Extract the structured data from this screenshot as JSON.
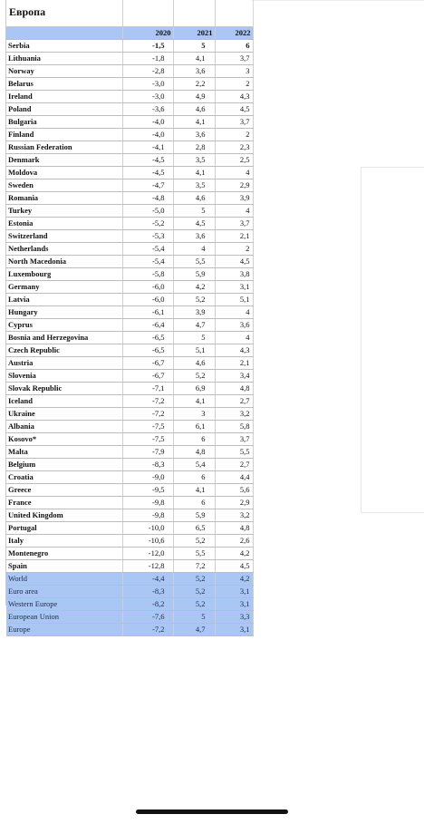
{
  "title": "Европа",
  "columns": [
    "",
    "2020",
    "2021",
    "2022"
  ],
  "rows": [
    {
      "name": "Serbia",
      "y2020": "-1,5",
      "y2021": "5",
      "y2022": "6"
    },
    {
      "name": "Lithuania",
      "y2020": "-1,8",
      "y2021": "4,1",
      "y2022": "3,7"
    },
    {
      "name": "Norway",
      "y2020": "-2,8",
      "y2021": "3,6",
      "y2022": "3"
    },
    {
      "name": "Belarus",
      "y2020": "-3,0",
      "y2021": "2,2",
      "y2022": "2"
    },
    {
      "name": "Ireland",
      "y2020": "-3,0",
      "y2021": "4,9",
      "y2022": "4,3"
    },
    {
      "name": "Poland",
      "y2020": "-3,6",
      "y2021": "4,6",
      "y2022": "4,5"
    },
    {
      "name": "Bulgaria",
      "y2020": "-4,0",
      "y2021": "4,1",
      "y2022": "3,7"
    },
    {
      "name": "Finland",
      "y2020": "-4,0",
      "y2021": "3,6",
      "y2022": "2"
    },
    {
      "name": "Russian Federation",
      "y2020": "-4,1",
      "y2021": "2,8",
      "y2022": "2,3"
    },
    {
      "name": "Denmark",
      "y2020": "-4,5",
      "y2021": "3,5",
      "y2022": "2,5"
    },
    {
      "name": "Moldova",
      "y2020": "-4,5",
      "y2021": "4,1",
      "y2022": "4"
    },
    {
      "name": "Sweden",
      "y2020": "-4,7",
      "y2021": "3,5",
      "y2022": "2,9"
    },
    {
      "name": "Romania",
      "y2020": "-4,8",
      "y2021": "4,6",
      "y2022": "3,9"
    },
    {
      "name": "Turkey",
      "y2020": "-5,0",
      "y2021": "5",
      "y2022": "4"
    },
    {
      "name": "Estonia",
      "y2020": "-5,2",
      "y2021": "4,5",
      "y2022": "3,7"
    },
    {
      "name": "Switzerland",
      "y2020": "-5,3",
      "y2021": "3,6",
      "y2022": "2,1"
    },
    {
      "name": "Netherlands",
      "y2020": "-5,4",
      "y2021": "4",
      "y2022": "2"
    },
    {
      "name": "North Macedonia",
      "y2020": "-5,4",
      "y2021": "5,5",
      "y2022": "4,5"
    },
    {
      "name": "Luxembourg",
      "y2020": "-5,8",
      "y2021": "5,9",
      "y2022": "3,8"
    },
    {
      "name": "Germany",
      "y2020": "-6,0",
      "y2021": "4,2",
      "y2022": "3,1"
    },
    {
      "name": "Latvia",
      "y2020": "-6,0",
      "y2021": "5,2",
      "y2022": "5,1"
    },
    {
      "name": "Hungary",
      "y2020": "-6,1",
      "y2021": "3,9",
      "y2022": "4"
    },
    {
      "name": "Cyprus",
      "y2020": "-6,4",
      "y2021": "4,7",
      "y2022": "3,6"
    },
    {
      "name": "Bosnia and Herzegovina",
      "y2020": "-6,5",
      "y2021": "5",
      "y2022": "4"
    },
    {
      "name": "Czech Republic",
      "y2020": "-6,5",
      "y2021": "5,1",
      "y2022": "4,3"
    },
    {
      "name": "Austria",
      "y2020": "-6,7",
      "y2021": "4,6",
      "y2022": "2,1"
    },
    {
      "name": "Slovenia",
      "y2020": "-6,7",
      "y2021": "5,2",
      "y2022": "3,4"
    },
    {
      "name": "Slovak Republic",
      "y2020": "-7,1",
      "y2021": "6,9",
      "y2022": "4,8"
    },
    {
      "name": "Iceland",
      "y2020": "-7,2",
      "y2021": "4,1",
      "y2022": "2,7"
    },
    {
      "name": "Ukraine",
      "y2020": "-7,2",
      "y2021": "3",
      "y2022": "3,2"
    },
    {
      "name": "Albania",
      "y2020": "-7,5",
      "y2021": "6,1",
      "y2022": "5,8"
    },
    {
      "name": "Kosovo*",
      "y2020": "-7,5",
      "y2021": "6",
      "y2022": "3,7"
    },
    {
      "name": "Malta",
      "y2020": "-7,9",
      "y2021": "4,8",
      "y2022": "5,5"
    },
    {
      "name": "Belgium",
      "y2020": "-8,3",
      "y2021": "5,4",
      "y2022": "2,7"
    },
    {
      "name": "Croatia",
      "y2020": "-9,0",
      "y2021": "6",
      "y2022": "4,4"
    },
    {
      "name": "Greece",
      "y2020": "-9,5",
      "y2021": "4,1",
      "y2022": "5,6"
    },
    {
      "name": "France",
      "y2020": "-9,8",
      "y2021": "6",
      "y2022": "2,9"
    },
    {
      "name": "United Kingdom",
      "y2020": "-9,8",
      "y2021": "5,9",
      "y2022": "3,2"
    },
    {
      "name": "Portugal",
      "y2020": "-10,0",
      "y2021": "6,5",
      "y2022": "4,8"
    },
    {
      "name": "Italy",
      "y2020": "-10,6",
      "y2021": "5,2",
      "y2022": "2,6"
    },
    {
      "name": "Montenegro",
      "y2020": "-12,0",
      "y2021": "5,5",
      "y2022": "4,2"
    },
    {
      "name": "Spain",
      "y2020": "-12,8",
      "y2021": "7,2",
      "y2022": "4,5"
    }
  ],
  "aggregates": [
    {
      "name": "World",
      "y2020": "-4,4",
      "y2021": "5,2",
      "y2022": "4,2"
    },
    {
      "name": "Euro area",
      "y2020": "-8,3",
      "y2021": "5,2",
      "y2022": "3,1"
    },
    {
      "name": "Western Europe",
      "y2020": "-8,2",
      "y2021": "5,2",
      "y2022": "3,1"
    },
    {
      "name": "European Union",
      "y2020": "-7,6",
      "y2021": "5",
      "y2022": "3,3"
    },
    {
      "name": "Europe",
      "y2020": "-7,2",
      "y2021": "4,7",
      "y2022": "3,1"
    }
  ],
  "colors": {
    "header_fill": "#a9c6f5",
    "aggregate_fill": "#a9c6f5"
  }
}
